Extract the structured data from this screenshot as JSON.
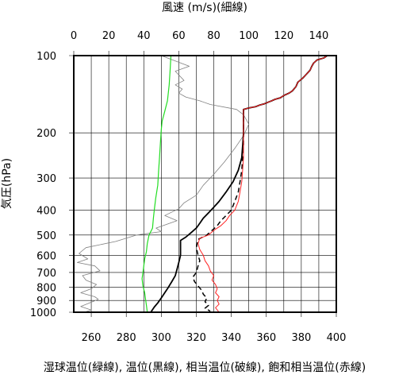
{
  "chart_data": {
    "type": "line",
    "title": "",
    "top_axis": {
      "label": "風速 (m/s)(細線)",
      "range": [
        0,
        150
      ],
      "ticks": [
        0,
        20,
        40,
        60,
        80,
        100,
        120,
        140
      ]
    },
    "bottom_axis": {
      "label": "湿球温位(緑線), 温位(黒線), 相当温位(破線), 飽和相当温位(赤線)",
      "range": [
        250,
        400
      ],
      "ticks": [
        260,
        280,
        300,
        320,
        340,
        360,
        380,
        400
      ]
    },
    "y_axis": {
      "label": "気圧(hPa)",
      "scale": "log",
      "reversed": true,
      "range": [
        100,
        1000
      ],
      "ticks": [
        100,
        200,
        300,
        400,
        500,
        600,
        700,
        800,
        900,
        1000
      ]
    },
    "grid": true,
    "series": [
      {
        "key": "wind_speed",
        "axis": "top",
        "color": "#808080",
        "dash": "",
        "width": 0.8,
        "points": [
          [
            50,
            100
          ],
          [
            66,
            110
          ],
          [
            58,
            115
          ],
          [
            63,
            125
          ],
          [
            58,
            130
          ],
          [
            62,
            135
          ],
          [
            60,
            140
          ],
          [
            64,
            145
          ],
          [
            72,
            150
          ],
          [
            78,
            155
          ],
          [
            93,
            162
          ],
          [
            97,
            170
          ],
          [
            100,
            185
          ],
          [
            97,
            205
          ],
          [
            92,
            230
          ],
          [
            86,
            260
          ],
          [
            80,
            290
          ],
          [
            74,
            320
          ],
          [
            70,
            350
          ],
          [
            63,
            375
          ],
          [
            60,
            395
          ],
          [
            52,
            420
          ],
          [
            59,
            440
          ],
          [
            47,
            470
          ],
          [
            50,
            485
          ],
          [
            36,
            500
          ],
          [
            24,
            530
          ],
          [
            7,
            560
          ],
          [
            3,
            590
          ],
          [
            8,
            620
          ],
          [
            2,
            640
          ],
          [
            12,
            660
          ],
          [
            15,
            690
          ],
          [
            5,
            720
          ],
          [
            7,
            750
          ],
          [
            13,
            780
          ],
          [
            10,
            810
          ],
          [
            4,
            840
          ],
          [
            12,
            870
          ],
          [
            14,
            890
          ],
          [
            9,
            920
          ],
          [
            4,
            950
          ],
          [
            10,
            980
          ],
          [
            6,
            1000
          ]
        ]
      },
      {
        "key": "wet_bulb_potential_temperature",
        "axis": "bottom",
        "color": "#22dd22",
        "dash": "",
        "width": 1.2,
        "points": [
          [
            305.5,
            100
          ],
          [
            305,
            115
          ],
          [
            304.5,
            130
          ],
          [
            303.5,
            150
          ],
          [
            302,
            165
          ],
          [
            300.5,
            180
          ],
          [
            300,
            195
          ],
          [
            299.5,
            220
          ],
          [
            299,
            250
          ],
          [
            298.5,
            280
          ],
          [
            298,
            320
          ],
          [
            296.8,
            360
          ],
          [
            296,
            400
          ],
          [
            295.5,
            430
          ],
          [
            295,
            470
          ],
          [
            293,
            500
          ],
          [
            292,
            540
          ],
          [
            291.5,
            580
          ],
          [
            290.5,
            620
          ],
          [
            290,
            660
          ],
          [
            289.5,
            700
          ],
          [
            289,
            740
          ],
          [
            289.5,
            790
          ],
          [
            290.5,
            840
          ],
          [
            291,
            890
          ],
          [
            291.5,
            940
          ],
          [
            292,
            1000
          ]
        ]
      },
      {
        "key": "potential_temperature",
        "axis": "bottom",
        "color": "#000000",
        "dash": "",
        "width": 1.8,
        "points": [
          [
            394.8,
            100
          ],
          [
            393,
            102
          ],
          [
            389,
            104
          ],
          [
            387,
            107
          ],
          [
            386,
            110
          ],
          [
            385,
            114
          ],
          [
            383,
            118
          ],
          [
            381,
            122
          ],
          [
            378,
            127
          ],
          [
            377,
            132
          ],
          [
            375,
            137
          ],
          [
            373,
            140
          ],
          [
            370,
            143
          ],
          [
            368,
            146
          ],
          [
            365,
            148
          ],
          [
            363,
            150
          ],
          [
            361,
            152
          ],
          [
            359,
            154
          ],
          [
            356,
            156
          ],
          [
            354,
            158
          ],
          [
            350,
            160
          ],
          [
            347,
            162
          ],
          [
            347,
            170
          ],
          [
            347,
            185
          ],
          [
            347,
            200
          ],
          [
            346.5,
            225
          ],
          [
            346,
            250
          ],
          [
            344,
            280
          ],
          [
            341,
            310
          ],
          [
            337,
            340
          ],
          [
            333,
            370
          ],
          [
            330,
            390
          ],
          [
            327,
            410
          ],
          [
            324,
            430
          ],
          [
            322,
            450
          ],
          [
            320,
            470
          ],
          [
            317,
            490
          ],
          [
            314,
            510
          ],
          [
            311,
            525
          ],
          [
            311,
            560
          ],
          [
            311,
            600
          ],
          [
            310,
            640
          ],
          [
            309,
            680
          ],
          [
            308,
            720
          ],
          [
            306,
            760
          ],
          [
            304,
            800
          ],
          [
            302,
            840
          ],
          [
            300,
            880
          ],
          [
            298,
            920
          ],
          [
            296,
            955
          ],
          [
            294,
            1000
          ]
        ]
      },
      {
        "key": "equivalent_potential_temperature",
        "axis": "bottom",
        "color": "#000000",
        "dash": "6,4",
        "width": 1.5,
        "points": [
          [
            394.8,
            100
          ],
          [
            393,
            102
          ],
          [
            389,
            104
          ],
          [
            387,
            107
          ],
          [
            386,
            110
          ],
          [
            385,
            114
          ],
          [
            383,
            118
          ],
          [
            381,
            122
          ],
          [
            378,
            127
          ],
          [
            377,
            132
          ],
          [
            375,
            137
          ],
          [
            373,
            140
          ],
          [
            370,
            143
          ],
          [
            368,
            146
          ],
          [
            365,
            148
          ],
          [
            363,
            150
          ],
          [
            361,
            152
          ],
          [
            359,
            154
          ],
          [
            356,
            156
          ],
          [
            354,
            158
          ],
          [
            350,
            160
          ],
          [
            347,
            162
          ],
          [
            347,
            170
          ],
          [
            347,
            185
          ],
          [
            347,
            200
          ],
          [
            347,
            225
          ],
          [
            346.5,
            250
          ],
          [
            346,
            280
          ],
          [
            345,
            310
          ],
          [
            344,
            340
          ],
          [
            342,
            370
          ],
          [
            340,
            400
          ],
          [
            337,
            420
          ],
          [
            334,
            440
          ],
          [
            332,
            460
          ],
          [
            329,
            480
          ],
          [
            326,
            500
          ],
          [
            321,
            520
          ],
          [
            320,
            560
          ],
          [
            321,
            600
          ],
          [
            322,
            630
          ],
          [
            321,
            660
          ],
          [
            320,
            700
          ],
          [
            318,
            730
          ],
          [
            319,
            760
          ],
          [
            321,
            790
          ],
          [
            323,
            820
          ],
          [
            324,
            850
          ],
          [
            326,
            880
          ],
          [
            325,
            910
          ],
          [
            327,
            940
          ],
          [
            325,
            965
          ],
          [
            328,
            990
          ]
        ]
      },
      {
        "key": "saturated_equivalent_potential_temperature",
        "axis": "bottom",
        "color": "#ff2222",
        "dash": "",
        "width": 1.0,
        "points": [
          [
            394.8,
            100
          ],
          [
            393,
            102
          ],
          [
            389,
            104
          ],
          [
            387,
            107
          ],
          [
            386,
            110
          ],
          [
            385,
            114
          ],
          [
            383,
            118
          ],
          [
            381,
            122
          ],
          [
            378,
            127
          ],
          [
            377,
            132
          ],
          [
            375,
            137
          ],
          [
            373,
            140
          ],
          [
            370,
            143
          ],
          [
            368,
            146
          ],
          [
            365,
            148
          ],
          [
            363,
            150
          ],
          [
            361,
            152
          ],
          [
            359,
            154
          ],
          [
            356,
            156
          ],
          [
            354,
            158
          ],
          [
            350,
            160
          ],
          [
            347,
            162
          ],
          [
            347,
            170
          ],
          [
            347,
            185
          ],
          [
            347,
            200
          ],
          [
            347,
            225
          ],
          [
            347,
            250
          ],
          [
            346.5,
            280
          ],
          [
            346,
            310
          ],
          [
            345,
            340
          ],
          [
            344,
            370
          ],
          [
            342,
            400
          ],
          [
            339,
            420
          ],
          [
            337,
            440
          ],
          [
            334,
            460
          ],
          [
            330,
            480
          ],
          [
            327,
            500
          ],
          [
            322,
            515
          ],
          [
            321,
            540
          ],
          [
            322,
            570
          ],
          [
            324,
            600
          ],
          [
            325,
            630
          ],
          [
            327,
            660
          ],
          [
            328,
            690
          ],
          [
            330,
            720
          ],
          [
            329,
            750
          ],
          [
            331,
            780
          ],
          [
            332,
            810
          ],
          [
            331,
            840
          ],
          [
            333,
            870
          ],
          [
            332,
            900
          ],
          [
            333,
            930
          ],
          [
            331,
            960
          ],
          [
            333,
            1000
          ]
        ]
      }
    ]
  }
}
